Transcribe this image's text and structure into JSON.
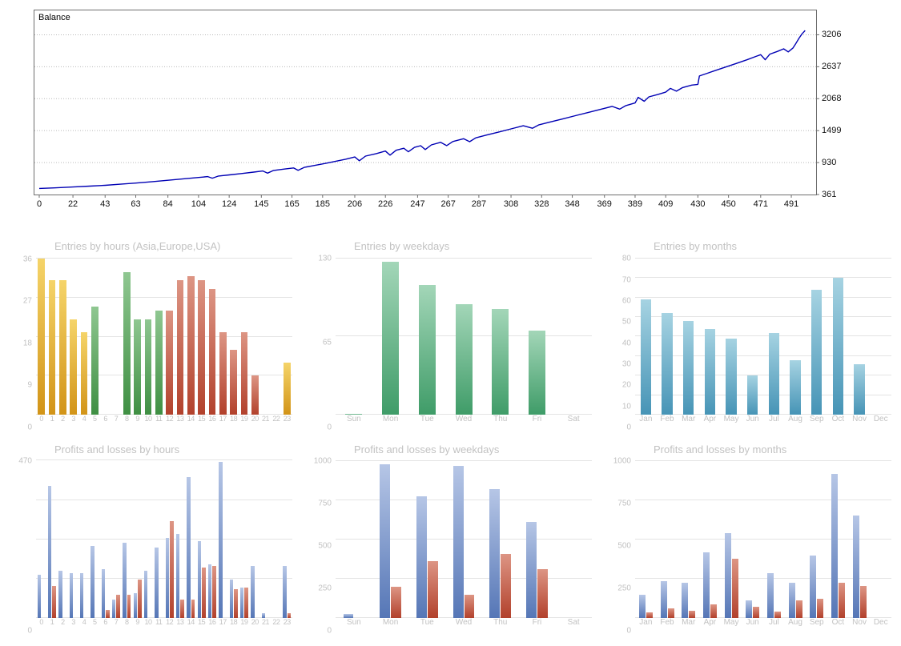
{
  "colors": {
    "balance_line": "#0000b4",
    "mini_text": "#c2c2c2",
    "mini_grid": "#e4e4e4",
    "palettes": {
      "asia": {
        "top": "#f5d469",
        "bottom": "#d29418"
      },
      "europe": {
        "top": "#8fc791",
        "bottom": "#3f8f43"
      },
      "usa": {
        "top": "#dd9584",
        "bottom": "#b2412c"
      },
      "weekday_green": {
        "top": "#a3d6b8",
        "bottom": "#3f9c68"
      },
      "month_teal": {
        "top": "#a6d3e2",
        "bottom": "#4694b6"
      },
      "profit_blue": {
        "top": "#b6c6e6",
        "bottom": "#5576b6"
      },
      "loss_red": {
        "top": "#dd9584",
        "bottom": "#b2412c"
      }
    }
  },
  "chart_data": [
    {
      "id": "balance",
      "type": "line",
      "title": "Balance",
      "ylabel": "",
      "xlabel": "",
      "y_ticks": [
        361,
        930,
        1499,
        2068,
        2637,
        3206
      ],
      "x_ticks": [
        0,
        22,
        43,
        63,
        84,
        104,
        124,
        145,
        165,
        185,
        206,
        226,
        247,
        267,
        287,
        308,
        328,
        348,
        369,
        389,
        409,
        430,
        450,
        471,
        491
      ],
      "x_max": 503,
      "y_min": 361,
      "y_max": 3640,
      "points": [
        [
          0,
          470
        ],
        [
          10,
          480
        ],
        [
          22,
          495
        ],
        [
          33,
          510
        ],
        [
          43,
          525
        ],
        [
          53,
          545
        ],
        [
          63,
          565
        ],
        [
          74,
          590
        ],
        [
          84,
          615
        ],
        [
          94,
          640
        ],
        [
          104,
          665
        ],
        [
          110,
          680
        ],
        [
          113,
          652
        ],
        [
          117,
          690
        ],
        [
          124,
          710
        ],
        [
          132,
          735
        ],
        [
          140,
          760
        ],
        [
          146,
          780
        ],
        [
          149,
          742
        ],
        [
          153,
          790
        ],
        [
          160,
          815
        ],
        [
          166,
          835
        ],
        [
          169,
          792
        ],
        [
          173,
          845
        ],
        [
          180,
          880
        ],
        [
          187,
          915
        ],
        [
          193,
          950
        ],
        [
          200,
          990
        ],
        [
          206,
          1030
        ],
        [
          209,
          962
        ],
        [
          213,
          1045
        ],
        [
          220,
          1090
        ],
        [
          226,
          1135
        ],
        [
          229,
          1062
        ],
        [
          233,
          1150
        ],
        [
          238,
          1185
        ],
        [
          241,
          1122
        ],
        [
          245,
          1200
        ],
        [
          249,
          1230
        ],
        [
          252,
          1162
        ],
        [
          256,
          1245
        ],
        [
          262,
          1290
        ],
        [
          266,
          1232
        ],
        [
          270,
          1305
        ],
        [
          277,
          1355
        ],
        [
          281,
          1302
        ],
        [
          285,
          1370
        ],
        [
          292,
          1420
        ],
        [
          300,
          1475
        ],
        [
          308,
          1530
        ],
        [
          316,
          1585
        ],
        [
          322,
          1542
        ],
        [
          326,
          1600
        ],
        [
          334,
          1655
        ],
        [
          342,
          1710
        ],
        [
          350,
          1765
        ],
        [
          358,
          1820
        ],
        [
          366,
          1875
        ],
        [
          374,
          1930
        ],
        [
          379,
          1882
        ],
        [
          383,
          1945
        ],
        [
          389,
          1992
        ],
        [
          391,
          2092
        ],
        [
          395,
          2022
        ],
        [
          398,
          2100
        ],
        [
          404,
          2145
        ],
        [
          409,
          2185
        ],
        [
          412,
          2252
        ],
        [
          416,
          2202
        ],
        [
          420,
          2265
        ],
        [
          426,
          2310
        ],
        [
          430,
          2322
        ],
        [
          431,
          2472
        ],
        [
          436,
          2520
        ],
        [
          442,
          2575
        ],
        [
          448,
          2630
        ],
        [
          455,
          2695
        ],
        [
          462,
          2760
        ],
        [
          468,
          2822
        ],
        [
          471,
          2852
        ],
        [
          474,
          2762
        ],
        [
          477,
          2862
        ],
        [
          482,
          2910
        ],
        [
          486,
          2955
        ],
        [
          489,
          2902
        ],
        [
          492,
          2968
        ],
        [
          494,
          3052
        ],
        [
          496,
          3142
        ],
        [
          498,
          3222
        ],
        [
          500,
          3282
        ]
      ]
    },
    {
      "id": "entries-by-hours",
      "type": "bar",
      "title": "Entries by hours (Asia,Europe,USA)",
      "categories": [
        "0",
        "1",
        "2",
        "3",
        "4",
        "5",
        "6",
        "7",
        "8",
        "9",
        "10",
        "11",
        "12",
        "13",
        "14",
        "15",
        "16",
        "17",
        "18",
        "19",
        "20",
        "21",
        "22",
        "23"
      ],
      "values": [
        36,
        31,
        31,
        22,
        19,
        25,
        0,
        0,
        33,
        22,
        22,
        24,
        24,
        31,
        32,
        31,
        29,
        19,
        15,
        19,
        9,
        0,
        0,
        12
      ],
      "bar_palette": [
        "asia",
        "asia",
        "asia",
        "asia",
        "asia",
        "europe",
        "asia",
        "asia",
        "europe",
        "europe",
        "europe",
        "europe",
        "usa",
        "usa",
        "usa",
        "usa",
        "usa",
        "usa",
        "usa",
        "usa",
        "usa",
        "usa",
        "usa",
        "asia"
      ],
      "y_ticks": [
        0,
        9,
        18,
        27,
        36
      ],
      "plot_max": 37,
      "bar_frac": 0.66
    },
    {
      "id": "entries-by-weekdays",
      "type": "bar",
      "title": "Entries by weekdays",
      "categories": [
        "Sun",
        "Mon",
        "Tue",
        "Wed",
        "Thu",
        "Fri",
        "Sat"
      ],
      "values": [
        1,
        127,
        108,
        92,
        88,
        70,
        0
      ],
      "palette": "weekday_green",
      "y_ticks": [
        0,
        65,
        130
      ],
      "plot_max": 133,
      "bar_frac": 0.46
    },
    {
      "id": "entries-by-months",
      "type": "bar",
      "title": "Entries by months",
      "categories": [
        "Jan",
        "Feb",
        "Mar",
        "Apr",
        "May",
        "Jun",
        "Jul",
        "Aug",
        "Sep",
        "Oct",
        "Nov",
        "Dec"
      ],
      "values": [
        59,
        52,
        48,
        44,
        39,
        20,
        42,
        28,
        64,
        70,
        26,
        0
      ],
      "palette": "month_teal",
      "y_ticks": [
        0,
        10,
        20,
        30,
        40,
        50,
        60,
        70,
        80
      ],
      "plot_max": 82,
      "bar_frac": 0.5
    },
    {
      "id": "pl-by-hours",
      "type": "grouped-bar",
      "title": "Profits and losses by hours",
      "categories": [
        "0",
        "1",
        "2",
        "3",
        "4",
        "5",
        "6",
        "7",
        "8",
        "9",
        "10",
        "11",
        "12",
        "13",
        "14",
        "15",
        "16",
        "17",
        "18",
        "19",
        "20",
        "21",
        "22",
        "23"
      ],
      "series": [
        {
          "name": "profit",
          "palette": "profit_blue",
          "values": [
            130,
            395,
            140,
            135,
            135,
            215,
            145,
            55,
            225,
            75,
            140,
            210,
            240,
            250,
            420,
            230,
            160,
            465,
            115,
            90,
            155,
            15,
            0,
            155
          ]
        },
        {
          "name": "loss",
          "palette": "loss_red",
          "values": [
            0,
            95,
            0,
            0,
            0,
            0,
            25,
            70,
            70,
            115,
            0,
            0,
            290,
            55,
            55,
            150,
            155,
            0,
            85,
            90,
            0,
            0,
            0,
            15
          ]
        }
      ],
      "y_ticks": [
        {
          "v": 0,
          "label": "0"
        },
        {
          "v": 118
        },
        {
          "v": 235
        },
        {
          "v": 352
        },
        {
          "v": 470,
          "label": "470"
        }
      ],
      "plot_max": 478,
      "bar_frac": 0.34
    },
    {
      "id": "pl-by-weekdays",
      "type": "grouped-bar",
      "title": "Profits and losses by weekdays",
      "categories": [
        "Sun",
        "Mon",
        "Tue",
        "Wed",
        "Thu",
        "Fri",
        "Sat"
      ],
      "series": [
        {
          "name": "profit",
          "palette": "profit_blue",
          "values": [
            25,
            980,
            775,
            970,
            820,
            610,
            0
          ]
        },
        {
          "name": "loss",
          "palette": "loss_red",
          "values": [
            0,
            200,
            360,
            150,
            410,
            310,
            0
          ]
        }
      ],
      "y_ticks": [
        0,
        250,
        500,
        750,
        1000
      ],
      "plot_max": 1020,
      "bar_frac": 0.28
    },
    {
      "id": "pl-by-months",
      "type": "grouped-bar",
      "title": "Profits and losses by months",
      "categories": [
        "Jan",
        "Feb",
        "Mar",
        "Apr",
        "May",
        "Jun",
        "Jul",
        "Aug",
        "Sep",
        "Oct",
        "Nov",
        "Dec"
      ],
      "series": [
        {
          "name": "profit",
          "palette": "profit_blue",
          "values": [
            150,
            235,
            225,
            420,
            540,
            110,
            285,
            225,
            400,
            920,
            655,
            0
          ]
        },
        {
          "name": "loss",
          "palette": "loss_red",
          "values": [
            35,
            60,
            45,
            85,
            375,
            70,
            40,
            110,
            120,
            225,
            205,
            0
          ]
        }
      ],
      "y_ticks": [
        0,
        250,
        500,
        750,
        1000
      ],
      "plot_max": 1020,
      "bar_frac": 0.3
    }
  ]
}
